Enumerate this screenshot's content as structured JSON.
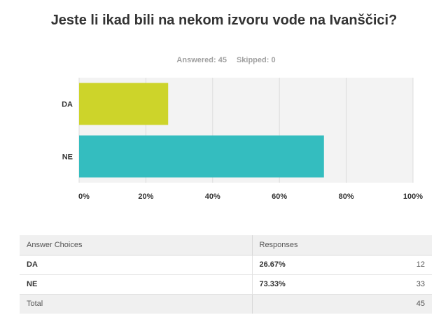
{
  "title": "Jeste li ikad bili na nekom izvoru vode na Ivanščici?",
  "stats": {
    "answered_label": "Answered: 45",
    "skipped_label": "Skipped: 0"
  },
  "chart_data": {
    "type": "bar",
    "orientation": "horizontal",
    "categories": [
      "DA",
      "NE"
    ],
    "values": [
      26.67,
      73.33
    ],
    "colors": [
      "#cdd42a",
      "#34bdbf"
    ],
    "xlim": [
      0,
      100
    ],
    "xticks": [
      "0%",
      "20%",
      "40%",
      "60%",
      "80%",
      "100%"
    ],
    "grid": true
  },
  "table": {
    "headers": [
      "Answer Choices",
      "Responses"
    ],
    "rows": [
      {
        "choice": "DA",
        "percent": "26.67%",
        "count": "12"
      },
      {
        "choice": "NE",
        "percent": "73.33%",
        "count": "33"
      }
    ],
    "total": {
      "label": "Total",
      "count": "45"
    }
  }
}
